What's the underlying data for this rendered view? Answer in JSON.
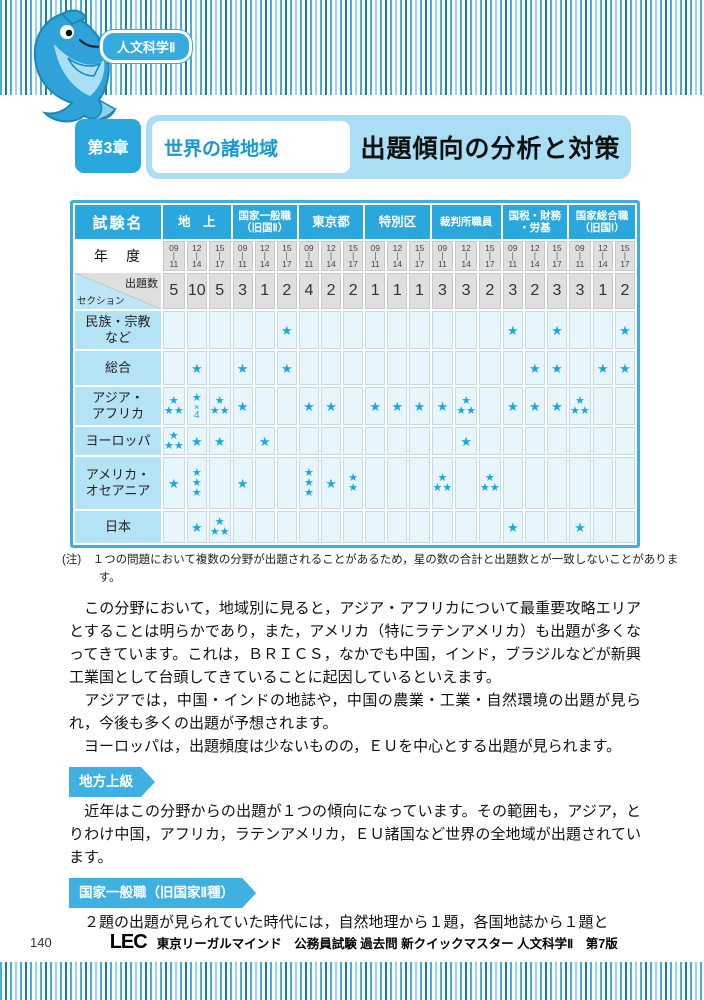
{
  "page": {
    "badge": "人文科学Ⅱ",
    "chapter_no": "第3章",
    "chapter_title": "世界の諸地域",
    "header_title": "出題傾向の分析と対策",
    "page_number": "140",
    "footer_logo": "LEC",
    "footer_text": "東京リーガルマインド　公務員試験 過去問 新クイックマスター 人文科学Ⅱ　第7版"
  },
  "table": {
    "corner_label": "試験名",
    "year_label": "年　度",
    "count_label": "出題数",
    "section_corner_label": "セクション",
    "exams": [
      {
        "lines": [
          "地　上"
        ],
        "small": false
      },
      {
        "lines": [
          "国家一般職",
          "（旧国Ⅱ）"
        ],
        "small": true
      },
      {
        "lines": [
          "東京都"
        ],
        "small": false
      },
      {
        "lines": [
          "特別区"
        ],
        "small": false
      },
      {
        "lines": [
          "裁判所職員"
        ],
        "small": true
      },
      {
        "lines": [
          "国税・財務",
          "・労基"
        ],
        "small": true
      },
      {
        "lines": [
          "国家総合職",
          "（旧国Ⅰ）"
        ],
        "small": true
      }
    ],
    "year_ranges": [
      {
        "from": "09",
        "to": "11"
      },
      {
        "from": "12",
        "to": "14"
      },
      {
        "from": "15",
        "to": "17"
      }
    ],
    "counts": [
      "5",
      "10",
      "5",
      "3",
      "1",
      "2",
      "4",
      "2",
      "2",
      "1",
      "1",
      "1",
      "3",
      "3",
      "2",
      "3",
      "2",
      "3",
      "3",
      "1",
      "2"
    ],
    "sections": [
      {
        "lines": [
          "民族・宗教",
          "など"
        ],
        "cells": [
          "",
          "",
          "",
          "",
          "",
          "s",
          "",
          "",
          "",
          "",
          "",
          "",
          "",
          "",
          "",
          "s",
          "",
          "s",
          "",
          "",
          "s"
        ]
      },
      {
        "lines": [
          "総合"
        ],
        "cells": [
          "",
          "s",
          "",
          "s",
          "",
          "s",
          "",
          "",
          "",
          "",
          "",
          "",
          "",
          "",
          "",
          "",
          "s",
          "s",
          "",
          "s",
          "s"
        ]
      },
      {
        "lines": [
          "アジア・",
          "アフリカ"
        ],
        "cells": [
          "p3",
          "x4",
          "p3",
          "s",
          "",
          "",
          "s",
          "s",
          "",
          "s",
          "s",
          "s",
          "s",
          "p3",
          "",
          "s",
          "s",
          "s",
          "p3",
          "",
          ""
        ]
      },
      {
        "lines": [
          "ヨーロッパ"
        ],
        "cells": [
          "p3",
          "s",
          "s",
          "",
          "s",
          "",
          "",
          "",
          "",
          "",
          "",
          "",
          "",
          "s",
          "",
          "",
          "",
          "",
          "",
          "",
          ""
        ]
      },
      {
        "lines": [
          "アメリカ・",
          "オセアニア"
        ],
        "cells": [
          "s",
          "v3",
          "",
          "s",
          "",
          "",
          "v3",
          "s",
          "v2",
          "",
          "",
          "",
          "p3",
          "",
          "p3",
          "",
          "",
          "",
          "",
          "",
          ""
        ]
      },
      {
        "lines": [
          "日本"
        ],
        "cells": [
          "",
          "s",
          "p3",
          "",
          "",
          "",
          "",
          "",
          "",
          "",
          "",
          "",
          "",
          "",
          "",
          "s",
          "",
          "",
          "s",
          "",
          ""
        ]
      }
    ],
    "note": "(注)　１つの問題において複数の分野が出題されることがあるため，星の数の合計と出題数とが一致しないことがあります。"
  },
  "body": {
    "paragraphs": [
      "　この分野において，地域別に見ると，アジア・アフリカについて最重要攻略エリアとすることは明らかであり，また，アメリカ（特にラテンアメリカ）も出題が多くなってきています。これは，ＢＲＩＣＳ，なかでも中国，インド，ブラジルなどが新興工業国として台頭してきていることに起因しているといえます。",
      "　アジアでは，中国・インドの地誌や，中国の農業・工業・自然環境の出題が見られ，今後も多くの出題が予想されます。",
      "　ヨーロッパは，出題頻度は少ないものの，ＥＵを中心とする出題が見られます。"
    ],
    "sections": [
      {
        "label": "地方上級",
        "text": "　近年はこの分野からの出題が１つの傾向になっています。その範囲も，アジア，とりわけ中国，アフリカ，ラテンアメリカ，ＥＵ諸国など世界の全地域が出題されています。"
      },
      {
        "label": "国家一般職（旧国家Ⅱ種）",
        "text": "　２題の出題が見られていた時代には，自然地理から１題，各国地誌から１題と"
      }
    ]
  },
  "icons": {
    "star": "★",
    "times": "×",
    "times_count": "4",
    "year_separator": "|"
  },
  "colors": {
    "accent": "#2aa7dd",
    "header_bar": "#a9def5",
    "label_cell": "#b5e3f6",
    "data_cell": "#e7f5fc",
    "gray_cell": "#dfdfdf",
    "star": "#1ea6e0",
    "title_blue": "#1898d5"
  }
}
